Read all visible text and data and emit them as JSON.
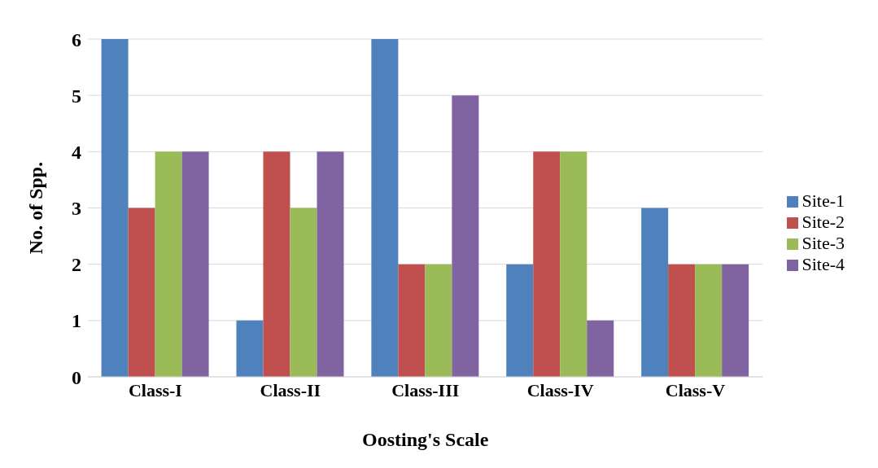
{
  "chart_data": {
    "type": "bar",
    "xlabel": "Oosting's Scale",
    "ylabel": "No. of Spp.",
    "categories": [
      "Class-I",
      "Class-II",
      "Class-III",
      "Class-IV",
      "Class-V"
    ],
    "series": [
      {
        "name": "Site-1",
        "color": "#4f81bd",
        "values": [
          6,
          1,
          6,
          2,
          3
        ]
      },
      {
        "name": "Site-2",
        "color": "#c0504d",
        "values": [
          3,
          4,
          2,
          4,
          2
        ]
      },
      {
        "name": "Site-3",
        "color": "#9bbb59",
        "values": [
          4,
          3,
          2,
          4,
          2
        ]
      },
      {
        "name": "Site-4",
        "color": "#8064a2",
        "values": [
          4,
          4,
          5,
          1,
          2
        ]
      }
    ],
    "ylim": [
      0,
      6
    ],
    "yticks": [
      0,
      1,
      2,
      3,
      4,
      5,
      6
    ],
    "grid": "y",
    "legend": "right"
  }
}
